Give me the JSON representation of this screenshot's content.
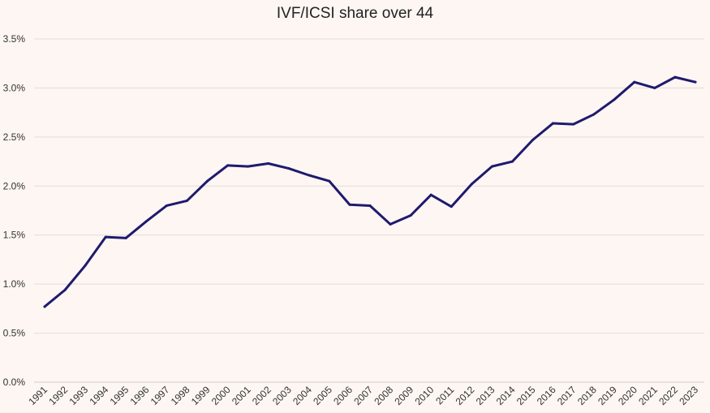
{
  "chart_data": {
    "type": "line",
    "title": "IVF/ICSI share over 44",
    "xlabel": "",
    "ylabel": "",
    "ylim": [
      0,
      0.035
    ],
    "y_ticks": [
      "0.0%",
      "0.5%",
      "1.0%",
      "1.5%",
      "2.0%",
      "2.5%",
      "3.0%",
      "3.5%"
    ],
    "y_tick_values": [
      0,
      0.005,
      0.01,
      0.015,
      0.02,
      0.025,
      0.03,
      0.035
    ],
    "grid": true,
    "legend": "none",
    "categories": [
      "1991",
      "1992",
      "1993",
      "1994",
      "1995",
      "1996",
      "1997",
      "1998",
      "1999",
      "2000",
      "2001",
      "2002",
      "2003",
      "2004",
      "2005",
      "2006",
      "2007",
      "2008",
      "2009",
      "2010",
      "2011",
      "2012",
      "2013",
      "2014",
      "2015",
      "2016",
      "2017",
      "2018",
      "2019",
      "2020",
      "2021",
      "2022",
      "2023"
    ],
    "series": [
      {
        "name": "IVF/ICSI share over 44",
        "color": "#1f1a6e",
        "values": [
          0.0077,
          0.0094,
          0.0119,
          0.0148,
          0.0147,
          0.0164,
          0.018,
          0.0185,
          0.0205,
          0.0221,
          0.022,
          0.0223,
          0.0218,
          0.0211,
          0.0205,
          0.0181,
          0.018,
          0.0161,
          0.017,
          0.0191,
          0.0179,
          0.0202,
          0.022,
          0.0225,
          0.0247,
          0.0264,
          0.0263,
          0.0273,
          0.0288,
          0.0306,
          0.03,
          0.0311,
          0.0306
        ]
      }
    ]
  }
}
